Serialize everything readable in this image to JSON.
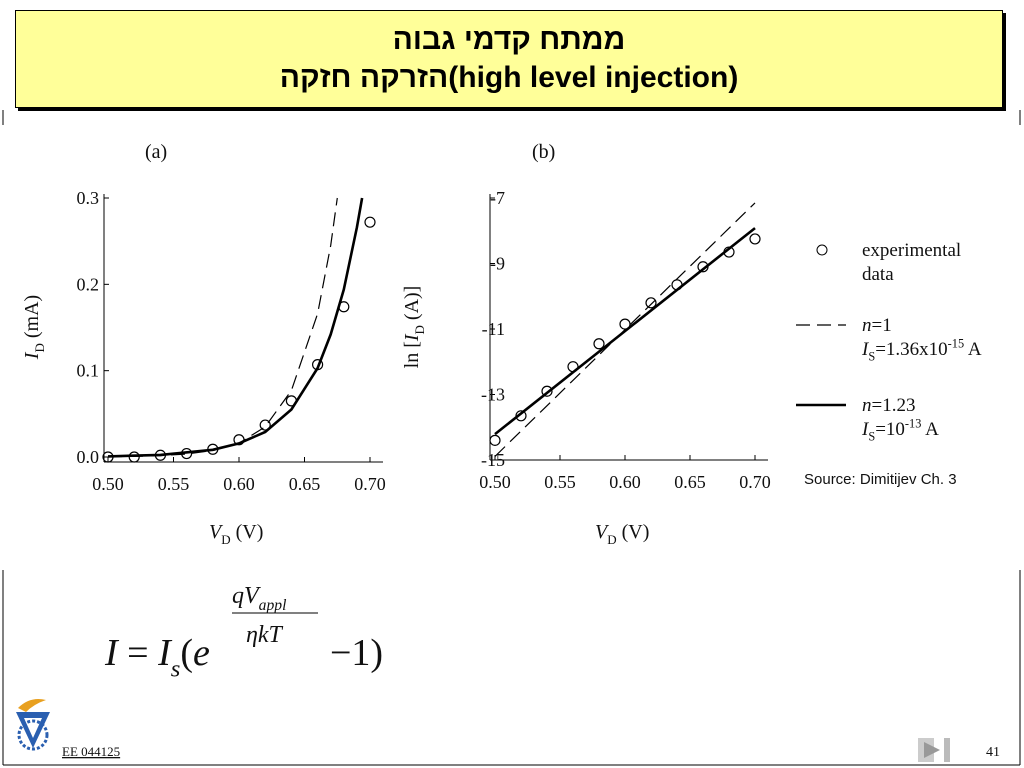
{
  "header": {
    "title": [
      "ממתח קדמי גבוה",
      "הזרקה חזקה(high level injection)"
    ]
  },
  "chart_data": [
    {
      "type": "line",
      "panel": "(a)",
      "xlabel": [
        {
          "text": "V",
          "italic": true
        },
        {
          "text": "D",
          "sub": true
        },
        {
          "text": "  (V)"
        }
      ],
      "ylabel": [
        {
          "text": "I",
          "italic": true
        },
        {
          "text": "D",
          "sub": true
        },
        {
          "text": " (mA)"
        }
      ],
      "xlim": [
        0.5,
        0.7
      ],
      "ylim": [
        0,
        0.3
      ],
      "xticks": [
        {
          "value": 0.5,
          "label": "0.50"
        },
        0.55,
        {
          "value": 0.6,
          "label": "0.60"
        },
        0.65,
        {
          "value": 0.7,
          "label": "0.70"
        }
      ],
      "yticks": [
        {
          "value": 0,
          "label": "0.0"
        },
        0.1,
        0.2,
        0.3
      ],
      "series": [
        {
          "style": "circle",
          "color": "#000000",
          "x": [
            0.5,
            0.52,
            0.54,
            0.56,
            0.58,
            0.6,
            0.62,
            0.64,
            0.66,
            0.68,
            0.7
          ],
          "values": [
            0,
            0,
            0.002,
            0.004,
            0.009,
            0.02,
            0.037,
            0.065,
            0.107,
            0.174,
            0.272
          ]
        },
        {
          "style": "dashed",
          "color": "#000000",
          "x": [
            0.5,
            0.52,
            0.54,
            0.56,
            0.58,
            0.6,
            0.62,
            0.64,
            0.66,
            0.67,
            0.675
          ],
          "values": [
            0.0003,
            0.0007,
            0.0016,
            0.0035,
            0.0075,
            0.016,
            0.035,
            0.077,
            0.166,
            0.245,
            0.3
          ]
        },
        {
          "style": "solid",
          "color": "#000000",
          "x": [
            0.5,
            0.54,
            0.58,
            0.6,
            0.62,
            0.64,
            0.66,
            0.67,
            0.68,
            0.69,
            0.694
          ],
          "values": [
            0.0007,
            0.0024,
            0.0083,
            0.0157,
            0.029,
            0.055,
            0.103,
            0.142,
            0.194,
            0.266,
            0.3
          ]
        }
      ]
    },
    {
      "type": "line",
      "panel": "(b)",
      "xlabel": [
        {
          "text": "V",
          "italic": true
        },
        {
          "text": "D",
          "sub": true
        },
        {
          "text": "  (V)"
        }
      ],
      "ylabel": [
        {
          "text": "ln ["
        },
        {
          "text": "I",
          "italic": true
        },
        {
          "text": "D",
          "sub": true
        },
        {
          "text": " (A)]"
        }
      ],
      "xlim": [
        0.5,
        0.7
      ],
      "ylim": [
        -15,
        -7
      ],
      "xticks": [
        {
          "value": 0.5,
          "label": "0.50"
        },
        0.55,
        {
          "value": 0.6,
          "label": "0.60"
        },
        0.65,
        {
          "value": 0.7,
          "label": "0.70"
        }
      ],
      "yticks": [
        -7,
        -9,
        -11,
        -13,
        -15
      ],
      "series": [
        {
          "style": "circle",
          "color": "#000000",
          "x": [
            0.5,
            0.52,
            0.54,
            0.56,
            0.58,
            0.6,
            0.62,
            0.64,
            0.66,
            0.68,
            0.7
          ],
          "values": [
            -14.4,
            -13.65,
            -12.9,
            -12.15,
            -11.45,
            -10.85,
            -10.2,
            -9.65,
            -9.1,
            -8.65,
            -8.25
          ]
        },
        {
          "style": "dashed",
          "color": "#000000",
          "x": [
            0.5,
            0.7
          ],
          "values": [
            -14.89,
            -7.15
          ]
        },
        {
          "style": "solid",
          "color": "#000000",
          "x": [
            0.5,
            0.7
          ],
          "values": [
            -14.21,
            -7.92
          ]
        }
      ],
      "legend": [
        {
          "style": "circle",
          "lines": [
            [
              {
                "text": "experimental"
              }
            ],
            [
              {
                "text": "data"
              }
            ]
          ]
        },
        {
          "style": "dashed",
          "lines": [
            [
              {
                "text": "n",
                "italic": true
              },
              {
                "text": "=1"
              }
            ],
            [
              {
                "text": "I",
                "italic": true
              },
              {
                "text": "S",
                "sub": true
              },
              {
                "text": "=1.36x10"
              },
              {
                "text": "-15",
                "sup": true
              },
              {
                "text": " A"
              }
            ]
          ]
        },
        {
          "style": "solid",
          "lines": [
            [
              {
                "text": "n",
                "italic": true
              },
              {
                "text": "=1.23"
              }
            ],
            [
              {
                "text": "I",
                "italic": true
              },
              {
                "text": "S",
                "sub": true
              },
              {
                "text": "=10"
              },
              {
                "text": "-13",
                "sup": true
              },
              {
                "text": " A"
              }
            ]
          ]
        }
      ],
      "source": "Source: Dimitijev Ch. 3"
    }
  ],
  "formula": {
    "left": [
      {
        "text": "I",
        "italic": true
      },
      {
        "text": " = "
      },
      {
        "text": "I",
        "italic": true
      },
      {
        "text": "s",
        "sub": true,
        "italic": true
      },
      {
        "text": "("
      },
      {
        "text": "e",
        "italic": true
      }
    ],
    "numerator": [
      {
        "text": "qV",
        "italic": true
      },
      {
        "text": "appl",
        "sub": true,
        "italic": true
      }
    ],
    "denominator": [
      {
        "text": "ηkT",
        "italic": true
      }
    ],
    "right": [
      {
        "text": "−1)"
      }
    ]
  },
  "footer": {
    "course": "EE 044125",
    "page": "41"
  }
}
